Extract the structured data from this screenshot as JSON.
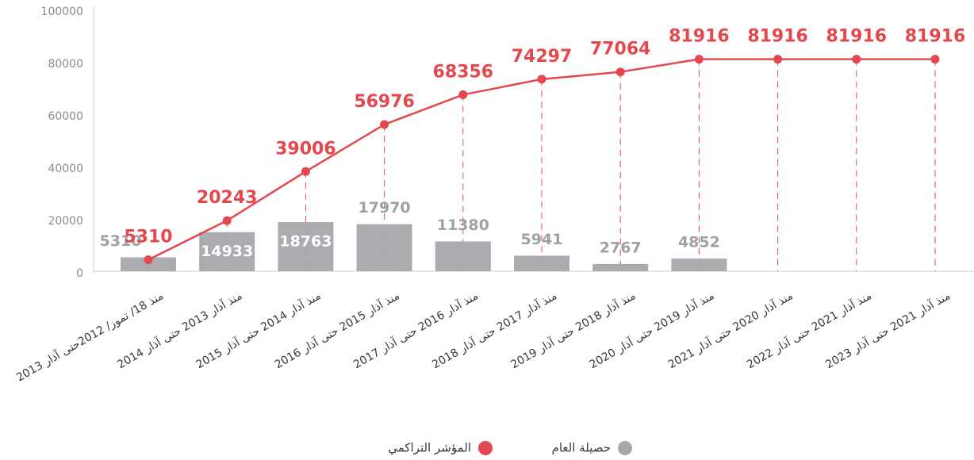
{
  "chart_data": {
    "type": "bar_line",
    "categories": [
      "منذ 18/ تموز/ 2012حتى آذار 2013",
      "منذ آذار 2013 حتى آذار 2014",
      "منذ آذار 2014 حتى آذار 2015",
      "منذ آذار 2015 حتى آذار 2016",
      "منذ آذار 2016 حتى آذار 2017",
      "منذ آذار 2017 حتى آذار 2018",
      "منذ آذار 2018 حتى آذار 2019",
      "منذ آذار 2019 حتى آذار 2020",
      "منذ آذار 2020 حتى آذار 2021",
      "منذ آذار 2021 حتى آذار 2022",
      "منذ آذار 2021 حتى آذار 2023"
    ],
    "series": [
      {
        "name": "حصيلة العام",
        "color": "#a7a8ab",
        "type": "bar",
        "values": [
          5310,
          14933,
          18763,
          17970,
          11380,
          5941,
          2767,
          4852,
          null,
          null,
          null
        ]
      },
      {
        "name": "المؤشر التراكمي",
        "color": "#e5474f",
        "type": "line",
        "values": [
          5310,
          20243,
          39006,
          56976,
          68356,
          74297,
          77064,
          81916,
          81916,
          81916,
          81916
        ]
      }
    ],
    "ylim": [
      0,
      100000
    ],
    "yticks": [
      0,
      20000,
      40000,
      60000,
      80000,
      100000
    ]
  }
}
